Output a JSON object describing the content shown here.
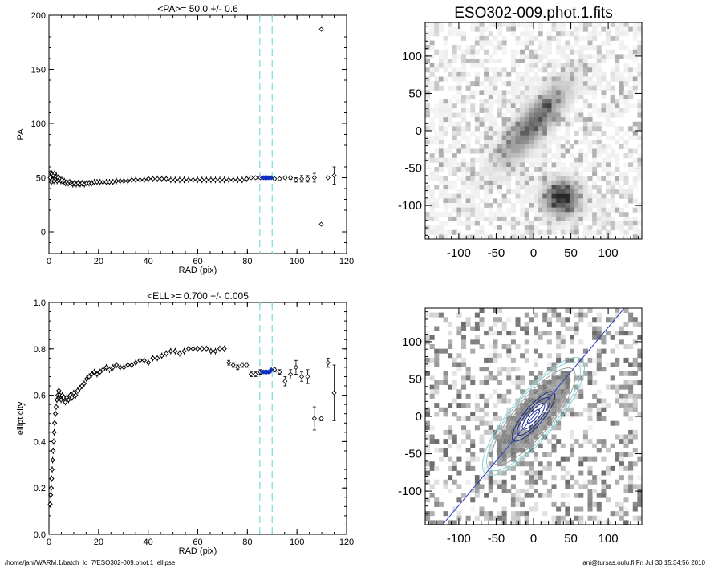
{
  "image_title": "ESO302-009.phot.1.fits",
  "footer": {
    "path": "/home/jani/WARM.1/batch_lo_7/ESO302-009.phot.1_ellipse",
    "stamp": "jani@tursas.oulu.fi  Fri Jul 30 15:34:56 2010"
  },
  "colors": {
    "guide": "#7fe0e0",
    "highlight": "#1030c0",
    "major_axis": "#2b3fbf",
    "contours": "#8ccfd0"
  },
  "chart_data": [
    {
      "type": "scatter",
      "title": "<PA>=  50.0 +/-   0.6",
      "xlabel": "RAD (pix)",
      "ylabel": "PA",
      "xlim": [
        0,
        120
      ],
      "ylim": [
        -20,
        200
      ],
      "xticks": [
        0,
        20,
        40,
        60,
        80,
        100,
        120
      ],
      "yticks": [
        0,
        50,
        100,
        150,
        200
      ],
      "guides_x": [
        85,
        90
      ],
      "grid": false,
      "dense_points": [
        [
          0.5,
          50
        ],
        [
          0.8,
          55
        ],
        [
          1.0,
          46
        ],
        [
          1.2,
          53
        ],
        [
          1.5,
          48
        ],
        [
          1.8,
          52
        ],
        [
          2.0,
          47
        ],
        [
          2.3,
          54
        ],
        [
          2.6,
          49
        ],
        [
          3.0,
          51
        ],
        [
          3.3,
          47
        ],
        [
          3.7,
          50
        ],
        [
          4.0,
          48
        ],
        [
          4.4,
          49
        ],
        [
          4.8,
          47
        ],
        [
          5.2,
          48
        ],
        [
          5.7,
          46
        ],
        [
          6.2,
          47
        ],
        [
          6.7,
          45
        ],
        [
          7.2,
          46
        ],
        [
          7.8,
          45
        ],
        [
          8.4,
          46
        ],
        [
          9.0,
          45
        ],
        [
          9.6,
          44
        ],
        [
          10.3,
          45
        ],
        [
          11.0,
          44
        ],
        [
          11.8,
          45
        ],
        [
          12.6,
          44
        ],
        [
          13.4,
          45
        ],
        [
          14.3,
          44
        ],
        [
          15.2,
          45
        ],
        [
          16.2,
          45
        ],
        [
          17.2,
          45
        ],
        [
          18.3,
          46
        ],
        [
          19.4,
          46
        ],
        [
          20.6,
          46
        ],
        [
          21.8,
          46
        ],
        [
          23.1,
          46
        ],
        [
          24.4,
          46
        ],
        [
          25.8,
          46
        ],
        [
          27.2,
          47
        ],
        [
          28.7,
          47
        ],
        [
          30.2,
          47
        ],
        [
          31.8,
          47
        ],
        [
          33.4,
          48
        ],
        [
          35.0,
          48
        ],
        [
          36.7,
          48
        ],
        [
          38.4,
          48
        ],
        [
          40.1,
          49
        ],
        [
          41.9,
          49
        ],
        [
          43.7,
          49
        ],
        [
          45.5,
          49
        ],
        [
          47.3,
          49
        ],
        [
          49.1,
          48
        ],
        [
          50.9,
          48
        ],
        [
          52.7,
          48
        ],
        [
          54.5,
          48
        ],
        [
          56.3,
          48
        ],
        [
          58.1,
          48
        ],
        [
          59.9,
          48
        ],
        [
          61.7,
          48
        ],
        [
          63.5,
          48
        ],
        [
          65.3,
          48
        ],
        [
          67.1,
          48
        ],
        [
          68.9,
          48
        ],
        [
          70.7,
          48
        ],
        [
          72.5,
          48
        ],
        [
          74.3,
          48
        ],
        [
          76.1,
          48
        ],
        [
          77.9,
          48
        ],
        [
          79.7,
          49
        ]
      ],
      "sparse_points": [
        {
          "x": 81.5,
          "y": 50,
          "err": 1
        },
        {
          "x": 83.3,
          "y": 50,
          "err": 1
        },
        {
          "x": 85.2,
          "y": 50,
          "err": 1
        },
        {
          "x": 91.0,
          "y": 49,
          "err": 1
        },
        {
          "x": 93.0,
          "y": 49,
          "err": 1
        },
        {
          "x": 95.2,
          "y": 50,
          "err": 1
        },
        {
          "x": 97.4,
          "y": 50,
          "err": 1.5
        },
        {
          "x": 99.6,
          "y": 48,
          "err": 2
        },
        {
          "x": 101.9,
          "y": 49,
          "err": 3
        },
        {
          "x": 104.3,
          "y": 49,
          "err": 3
        },
        {
          "x": 107.0,
          "y": 50,
          "err": 4
        },
        {
          "x": 109.8,
          "y": 187,
          "err": 0
        },
        {
          "x": 109.8,
          "y": 7,
          "err": 0
        },
        {
          "x": 112.5,
          "y": 50,
          "err": 0
        },
        {
          "x": 115.0,
          "y": 52,
          "err": 8
        }
      ],
      "highlight_points": [
        [
          86.0,
          50
        ],
        [
          86.6,
          50
        ],
        [
          87.2,
          50
        ],
        [
          87.8,
          50
        ],
        [
          88.4,
          50
        ],
        [
          89.0,
          50
        ],
        [
          89.6,
          50
        ]
      ]
    },
    {
      "type": "scatter",
      "title": "<ELL>= 0.700 +/-  0.005",
      "xlabel": "RAD (pix)",
      "ylabel": "ellipticity",
      "xlim": [
        0,
        120
      ],
      "ylim": [
        0.0,
        1.0
      ],
      "xticks": [
        0,
        20,
        40,
        60,
        80,
        100,
        120
      ],
      "yticks": [
        0.0,
        0.2,
        0.4,
        0.6,
        0.8,
        1.0
      ],
      "ytick_labels": [
        "0.0",
        "0.2",
        "0.4",
        "0.6",
        "0.8",
        "1.0"
      ],
      "guides_x": [
        85,
        90
      ],
      "grid": false,
      "dense_points": [
        [
          0.5,
          0.13
        ],
        [
          0.7,
          0.17
        ],
        [
          0.9,
          0.2
        ],
        [
          1.1,
          0.24
        ],
        [
          1.3,
          0.28
        ],
        [
          1.5,
          0.32
        ],
        [
          1.7,
          0.36
        ],
        [
          1.9,
          0.4
        ],
        [
          2.1,
          0.44
        ],
        [
          2.3,
          0.48
        ],
        [
          2.6,
          0.52
        ],
        [
          2.9,
          0.55
        ],
        [
          3.2,
          0.58
        ],
        [
          3.6,
          0.6
        ],
        [
          4.0,
          0.62
        ],
        [
          4.4,
          0.6
        ],
        [
          4.9,
          0.58
        ],
        [
          5.4,
          0.6
        ],
        [
          6.0,
          0.59
        ],
        [
          6.6,
          0.57
        ],
        [
          7.2,
          0.59
        ],
        [
          7.9,
          0.58
        ],
        [
          8.6,
          0.6
        ],
        [
          9.3,
          0.59
        ],
        [
          10.0,
          0.61
        ],
        [
          10.8,
          0.6
        ],
        [
          11.6,
          0.62
        ],
        [
          12.4,
          0.63
        ],
        [
          13.3,
          0.64
        ],
        [
          14.2,
          0.65
        ],
        [
          15.2,
          0.67
        ],
        [
          16.2,
          0.68
        ],
        [
          17.2,
          0.69
        ],
        [
          18.3,
          0.7
        ],
        [
          19.4,
          0.69
        ],
        [
          20.6,
          0.7
        ],
        [
          21.8,
          0.71
        ],
        [
          23.1,
          0.72
        ],
        [
          24.4,
          0.71
        ],
        [
          25.8,
          0.72
        ],
        [
          27.2,
          0.73
        ],
        [
          28.7,
          0.72
        ],
        [
          30.2,
          0.72
        ],
        [
          31.8,
          0.73
        ],
        [
          33.4,
          0.73
        ],
        [
          35.0,
          0.74
        ],
        [
          36.7,
          0.75
        ],
        [
          38.4,
          0.75
        ],
        [
          40.1,
          0.74
        ],
        [
          41.9,
          0.76
        ],
        [
          43.7,
          0.76
        ],
        [
          45.5,
          0.77
        ],
        [
          47.3,
          0.78
        ],
        [
          49.1,
          0.79
        ],
        [
          50.9,
          0.79
        ],
        [
          52.7,
          0.78
        ],
        [
          54.5,
          0.79
        ],
        [
          56.3,
          0.8
        ],
        [
          58.1,
          0.8
        ],
        [
          59.9,
          0.8
        ],
        [
          61.7,
          0.8
        ],
        [
          63.5,
          0.8
        ],
        [
          65.3,
          0.79
        ],
        [
          67.1,
          0.79
        ],
        [
          68.9,
          0.8
        ],
        [
          70.7,
          0.8
        ]
      ],
      "sparse_points": [
        {
          "x": 72.5,
          "y": 0.74,
          "err": 0.01
        },
        {
          "x": 74.3,
          "y": 0.73,
          "err": 0.01
        },
        {
          "x": 76.1,
          "y": 0.72,
          "err": 0.01
        },
        {
          "x": 77.9,
          "y": 0.73,
          "err": 0.01
        },
        {
          "x": 79.7,
          "y": 0.73,
          "err": 0.01
        },
        {
          "x": 81.5,
          "y": 0.69,
          "err": 0.01
        },
        {
          "x": 83.3,
          "y": 0.69,
          "err": 0.01
        },
        {
          "x": 85.2,
          "y": 0.7,
          "err": 0.01
        },
        {
          "x": 91.0,
          "y": 0.71,
          "err": 0.01
        },
        {
          "x": 93.0,
          "y": 0.7,
          "err": 0.01
        },
        {
          "x": 95.2,
          "y": 0.66,
          "err": 0.02
        },
        {
          "x": 97.4,
          "y": 0.69,
          "err": 0.02
        },
        {
          "x": 99.6,
          "y": 0.72,
          "err": 0.03
        },
        {
          "x": 101.9,
          "y": 0.68,
          "err": 0.02
        },
        {
          "x": 104.3,
          "y": 0.68,
          "err": 0.03
        },
        {
          "x": 107.0,
          "y": 0.5,
          "err": 0.05
        },
        {
          "x": 109.8,
          "y": 0.5,
          "err": 0.01
        },
        {
          "x": 112.5,
          "y": 0.74,
          "err": 0.02
        },
        {
          "x": 115.0,
          "y": 0.61,
          "err": 0.12
        }
      ],
      "highlight_points": [
        [
          86.0,
          0.7
        ],
        [
          86.6,
          0.7
        ],
        [
          87.2,
          0.7
        ],
        [
          87.8,
          0.7
        ],
        [
          88.4,
          0.7
        ],
        [
          89.0,
          0.7
        ],
        [
          89.6,
          0.71
        ]
      ]
    },
    {
      "type": "heatmap",
      "title": "ESO302-009.phot.1.fits",
      "xlim": [
        -145,
        145
      ],
      "ylim": [
        -145,
        145
      ],
      "xticks": [
        -100,
        -50,
        0,
        50,
        100
      ],
      "yticks": [
        -100,
        -50,
        0,
        50,
        100
      ],
      "galaxy": {
        "center": [
          0,
          10
        ],
        "pa_deg": 50,
        "semi_major": 110,
        "ellipticity": 0.7
      },
      "companion": {
        "center": [
          38,
          -90
        ],
        "radius": 22
      }
    },
    {
      "type": "heatmap",
      "xlim": [
        -145,
        145
      ],
      "ylim": [
        -145,
        145
      ],
      "xticks": [
        -100,
        -50,
        0,
        50,
        100
      ],
      "yticks": [
        -100,
        -50,
        0,
        50,
        100
      ],
      "major_axis_pa_deg": 50,
      "contour_semi_major": [
        12,
        22,
        32,
        42,
        52,
        62,
        72,
        82,
        92,
        100
      ],
      "contour_ellipticity": 0.7
    }
  ]
}
